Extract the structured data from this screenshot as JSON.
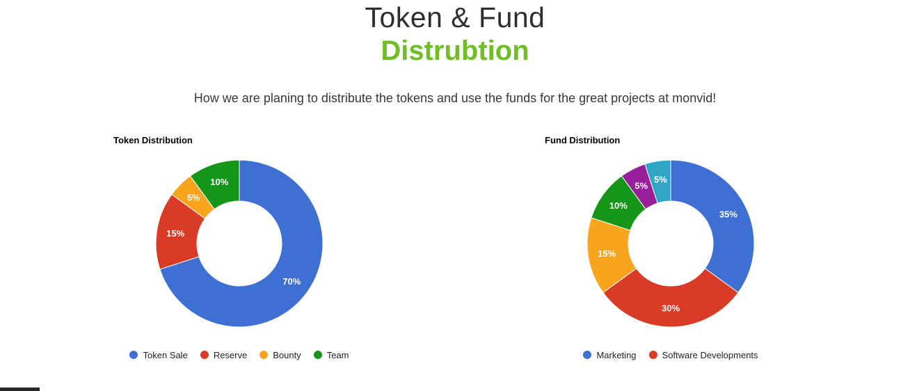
{
  "header": {
    "title_line1": "Token & Fund",
    "title_line2": "Distrubtion",
    "subtitle": "How we are planing to distribute the tokens and use the funds for the great projects at monvid!"
  },
  "colors": {
    "title_green": "#6ebe24",
    "background": "#ffffff",
    "palette": [
      "#3e6fd3",
      "#d93b26",
      "#f8a41d",
      "#159618",
      "#991e99",
      "#31a5c6"
    ]
  },
  "chart_data": [
    {
      "type": "pie",
      "donut": true,
      "title": "Token Distribution",
      "legend_position": "bottom",
      "slices": [
        {
          "label": "Token Sale",
          "value": 70,
          "display": "70%",
          "color": "#3e6fd3"
        },
        {
          "label": "Reserve",
          "value": 15,
          "display": "15%",
          "color": "#d93b26"
        },
        {
          "label": "Bounty",
          "value": 5,
          "display": "5%",
          "color": "#f8a41d"
        },
        {
          "label": "Team",
          "value": 10,
          "display": "10%",
          "color": "#159618"
        }
      ],
      "legend": [
        "Token Sale",
        "Reserve",
        "Bounty",
        "Team"
      ]
    },
    {
      "type": "pie",
      "donut": true,
      "title": "Fund Distribution",
      "legend_position": "bottom",
      "slices": [
        {
          "label": "Marketing",
          "value": 35,
          "display": "35%",
          "color": "#3e6fd3"
        },
        {
          "label": "Software Developments",
          "value": 30,
          "display": "30%",
          "color": "#d93b26"
        },
        {
          "label": "",
          "value": 15,
          "display": "15%",
          "color": "#f8a41d"
        },
        {
          "label": "",
          "value": 10,
          "display": "10%",
          "color": "#159618"
        },
        {
          "label": "",
          "value": 5,
          "display": "5%",
          "color": "#991e99"
        },
        {
          "label": "",
          "value": 5,
          "display": "5%",
          "color": "#31a5c6"
        }
      ],
      "legend": [
        "Marketing",
        "Software Developments"
      ]
    }
  ]
}
